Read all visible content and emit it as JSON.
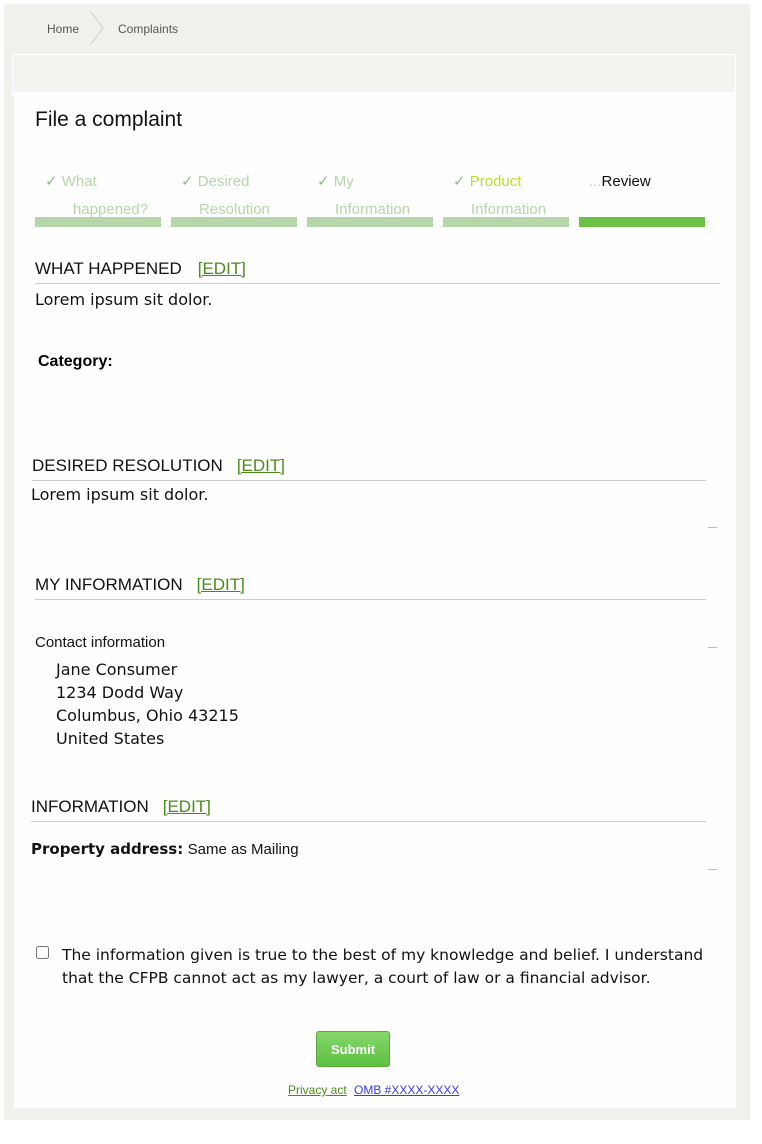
{
  "breadcrumb": {
    "home": "Home",
    "current": "Complaints"
  },
  "title": "File a complaint",
  "steps": [
    {
      "line1": "What",
      "line2": "happened?",
      "status": "done"
    },
    {
      "line1": "Desired",
      "line2": "Resolution",
      "status": "done"
    },
    {
      "line1": "My",
      "line2": "Information",
      "status": "done"
    },
    {
      "line1": "Product",
      "line2": "Information",
      "status": "done"
    },
    {
      "line1": "Review",
      "line2": "",
      "status": "current"
    }
  ],
  "colors": {
    "done": "#b5d6a8",
    "current": "#6cc244",
    "edit": "#4a8a1a"
  },
  "edit_label": "[EDIT]",
  "sections": {
    "what_happened": {
      "heading": "WHAT HAPPENED",
      "text": "Lorem ipsum sit dolor.",
      "category_label": "Category:"
    },
    "desired_resolution": {
      "heading": "DESIRED RESOLUTION",
      "text": "Lorem ipsum sit dolor."
    },
    "my_information": {
      "heading": "MY INFORMATION",
      "contact_label": "Contact information",
      "address": [
        "Jane Consumer",
        "1234 Dodd Way",
        "Columbus, Ohio 43215",
        "United States"
      ]
    },
    "information": {
      "heading": "INFORMATION",
      "property_label": "Property address:",
      "property_value": "Same as Mailing"
    }
  },
  "agreement": {
    "text": "The information given is true to the best of my knowledge and belief. I understand that the CFPB cannot act as my lawyer, a court of law or a financial advisor.",
    "checked": false
  },
  "submit_label": "Submit",
  "footer": {
    "privacy": "Privacy act",
    "omb": "OMB #XXXX-XXXX"
  }
}
